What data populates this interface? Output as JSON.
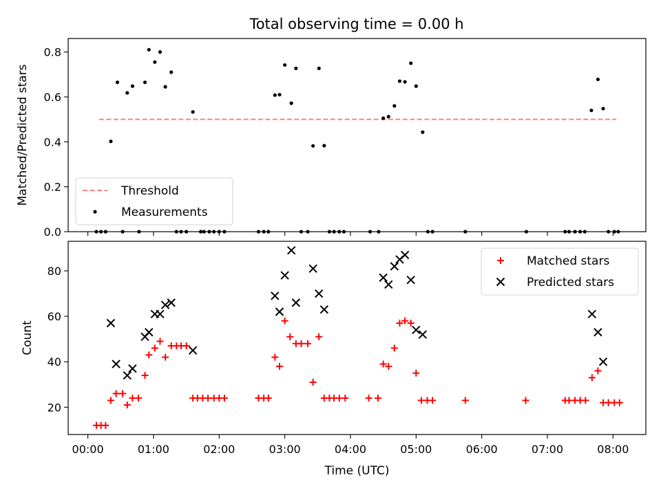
{
  "figure": {
    "title": "Total observing time = 0.00 h"
  },
  "chart_data": [
    {
      "type": "scatter",
      "name": "ratio-panel",
      "ylabel": "Matched/Predicted stars",
      "xlabel": "",
      "xlim": [
        -0.3,
        8.5
      ],
      "ylim": [
        0,
        0.86
      ],
      "yticks": [
        0,
        0.2,
        0.4,
        0.6,
        0.8
      ],
      "ytick_labels": [
        "0.0",
        "0.2",
        "0.4",
        "0.6",
        "0.8"
      ],
      "xticks": [
        0,
        1,
        2,
        3,
        4,
        5,
        6,
        7,
        8
      ],
      "legend": {
        "loc": "lower left",
        "entries": [
          "Threshold",
          "Measurements"
        ]
      },
      "threshold": {
        "name": "Threshold",
        "value": 0.5,
        "x_range": [
          0.17,
          8.05
        ],
        "color": "#ff7f7f",
        "style": "dashed"
      },
      "series": [
        {
          "name": "Measurements",
          "color": "#000000",
          "marker": "dot",
          "points": [
            [
              0.13,
              0.0
            ],
            [
              0.2,
              0.0
            ],
            [
              0.27,
              0.0
            ],
            [
              0.35,
              0.402
            ],
            [
              0.45,
              0.665
            ],
            [
              0.53,
              0.0
            ],
            [
              0.6,
              0.618
            ],
            [
              0.68,
              0.648
            ],
            [
              0.78,
              0.0
            ],
            [
              0.87,
              0.665
            ],
            [
              0.93,
              0.81
            ],
            [
              1.02,
              0.755
            ],
            [
              1.1,
              0.8
            ],
            [
              1.18,
              0.645
            ],
            [
              1.27,
              0.71
            ],
            [
              1.35,
              0.0
            ],
            [
              1.42,
              0.0
            ],
            [
              1.5,
              0.0
            ],
            [
              1.6,
              0.533
            ],
            [
              1.72,
              0.0
            ],
            [
              1.77,
              0.0
            ],
            [
              1.85,
              0.0
            ],
            [
              1.92,
              0.0
            ],
            [
              2.0,
              0.0
            ],
            [
              2.08,
              0.0
            ],
            [
              2.6,
              0.0
            ],
            [
              2.68,
              0.0
            ],
            [
              2.75,
              0.0
            ],
            [
              2.85,
              0.608
            ],
            [
              2.92,
              0.61
            ],
            [
              3.0,
              0.742
            ],
            [
              3.1,
              0.572
            ],
            [
              3.17,
              0.727
            ],
            [
              3.25,
              0.0
            ],
            [
              3.35,
              0.0
            ],
            [
              3.43,
              0.382
            ],
            [
              3.52,
              0.727
            ],
            [
              3.6,
              0.383
            ],
            [
              3.68,
              0.0
            ],
            [
              3.75,
              0.0
            ],
            [
              3.83,
              0.0
            ],
            [
              3.9,
              0.0
            ],
            [
              4.3,
              0.0
            ],
            [
              4.43,
              0.0
            ],
            [
              4.5,
              0.505
            ],
            [
              4.58,
              0.512
            ],
            [
              4.67,
              0.56
            ],
            [
              4.75,
              0.67
            ],
            [
              4.83,
              0.667
            ],
            [
              4.92,
              0.75
            ],
            [
              5.0,
              0.648
            ],
            [
              5.1,
              0.443
            ],
            [
              5.18,
              0.0
            ],
            [
              5.25,
              0.0
            ],
            [
              5.75,
              0.0
            ],
            [
              6.68,
              0.0
            ],
            [
              7.27,
              0.0
            ],
            [
              7.33,
              0.0
            ],
            [
              7.42,
              0.0
            ],
            [
              7.5,
              0.0
            ],
            [
              7.57,
              0.0
            ],
            [
              7.67,
              0.54
            ],
            [
              7.77,
              0.678
            ],
            [
              7.85,
              0.548
            ],
            [
              7.93,
              0.0
            ],
            [
              8.02,
              0.0
            ],
            [
              8.08,
              0.0
            ]
          ]
        }
      ]
    },
    {
      "type": "scatter",
      "name": "count-panel",
      "ylabel": "Count",
      "xlabel": "Time (UTC)",
      "xlim": [
        -0.3,
        8.5
      ],
      "ylim": [
        8,
        93
      ],
      "yticks": [
        20,
        40,
        60,
        80
      ],
      "ytick_labels": [
        "20",
        "40",
        "60",
        "80"
      ],
      "xticks": [
        0,
        1,
        2,
        3,
        4,
        5,
        6,
        7,
        8
      ],
      "xtick_labels": [
        "00:00",
        "01:00",
        "02:00",
        "03:00",
        "04:00",
        "05:00",
        "06:00",
        "07:00",
        "08:00"
      ],
      "legend": {
        "loc": "upper right",
        "entries": [
          "Matched stars",
          "Predicted stars"
        ]
      },
      "series": [
        {
          "name": "Matched stars",
          "color": "#ff0000",
          "marker": "plus",
          "points": [
            [
              0.13,
              12
            ],
            [
              0.2,
              12
            ],
            [
              0.27,
              12
            ],
            [
              0.35,
              23
            ],
            [
              0.43,
              26
            ],
            [
              0.53,
              26
            ],
            [
              0.6,
              21
            ],
            [
              0.68,
              24
            ],
            [
              0.77,
              24
            ],
            [
              0.87,
              34
            ],
            [
              0.93,
              43
            ],
            [
              1.02,
              46
            ],
            [
              1.1,
              49
            ],
            [
              1.18,
              42
            ],
            [
              1.27,
              47
            ],
            [
              1.35,
              47
            ],
            [
              1.42,
              47
            ],
            [
              1.5,
              47
            ],
            [
              1.6,
              24
            ],
            [
              1.67,
              24
            ],
            [
              1.75,
              24
            ],
            [
              1.83,
              24
            ],
            [
              1.92,
              24
            ],
            [
              2.0,
              24
            ],
            [
              2.08,
              24
            ],
            [
              2.6,
              24
            ],
            [
              2.68,
              24
            ],
            [
              2.75,
              24
            ],
            [
              2.85,
              42
            ],
            [
              2.92,
              38
            ],
            [
              3.0,
              58
            ],
            [
              3.08,
              51
            ],
            [
              3.17,
              48
            ],
            [
              3.25,
              48
            ],
            [
              3.35,
              48
            ],
            [
              3.43,
              31
            ],
            [
              3.52,
              51
            ],
            [
              3.6,
              24
            ],
            [
              3.68,
              24
            ],
            [
              3.75,
              24
            ],
            [
              3.83,
              24
            ],
            [
              3.92,
              24
            ],
            [
              4.28,
              24
            ],
            [
              4.42,
              24
            ],
            [
              4.5,
              39
            ],
            [
              4.58,
              38
            ],
            [
              4.67,
              46
            ],
            [
              4.75,
              57
            ],
            [
              4.83,
              58
            ],
            [
              4.92,
              57
            ],
            [
              5.0,
              35
            ],
            [
              5.08,
              23
            ],
            [
              5.17,
              23
            ],
            [
              5.25,
              23
            ],
            [
              5.75,
              23
            ],
            [
              6.67,
              23
            ],
            [
              7.27,
              23
            ],
            [
              7.33,
              23
            ],
            [
              7.42,
              23
            ],
            [
              7.5,
              23
            ],
            [
              7.58,
              23
            ],
            [
              7.68,
              33
            ],
            [
              7.77,
              36
            ],
            [
              7.85,
              22
            ],
            [
              7.93,
              22
            ],
            [
              8.02,
              22
            ],
            [
              8.1,
              22
            ]
          ]
        },
        {
          "name": "Predicted stars",
          "color": "#000000",
          "marker": "x",
          "points": [
            [
              0.35,
              57
            ],
            [
              0.43,
              39
            ],
            [
              0.6,
              34
            ],
            [
              0.68,
              37
            ],
            [
              0.87,
              51
            ],
            [
              0.93,
              53
            ],
            [
              1.02,
              61
            ],
            [
              1.1,
              61
            ],
            [
              1.18,
              65
            ],
            [
              1.27,
              66
            ],
            [
              1.6,
              45
            ],
            [
              2.85,
              69
            ],
            [
              2.92,
              62
            ],
            [
              3.0,
              78
            ],
            [
              3.1,
              89
            ],
            [
              3.17,
              66
            ],
            [
              3.43,
              81
            ],
            [
              3.52,
              70
            ],
            [
              3.6,
              63
            ],
            [
              4.5,
              77
            ],
            [
              4.58,
              74
            ],
            [
              4.67,
              82
            ],
            [
              4.75,
              85
            ],
            [
              4.83,
              87
            ],
            [
              4.92,
              76
            ],
            [
              5.0,
              54
            ],
            [
              5.1,
              52
            ],
            [
              7.68,
              61
            ],
            [
              7.77,
              53
            ],
            [
              7.85,
              40
            ]
          ]
        }
      ]
    }
  ]
}
